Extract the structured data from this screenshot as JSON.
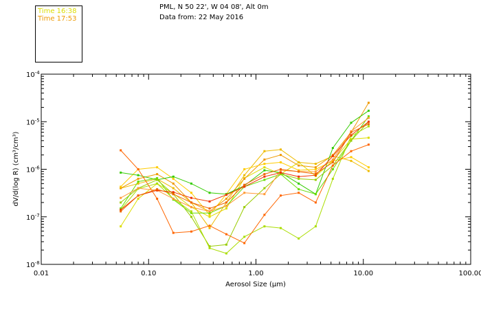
{
  "header": {
    "location": "PML, N 50 22', W 04 08', Alt 0m",
    "data_from": "Data from: 22 May 2016"
  },
  "legend": [
    {
      "label": "Time 16:38",
      "color": "#dddd00"
    },
    {
      "label": "Time 17:53",
      "color": "#ee9900"
    }
  ],
  "chart_data": {
    "type": "line",
    "title": "PML, N 50 22', W 04 08', Alt 0m",
    "xlabel": "Aerosol Size (μm)",
    "ylabel": "dV/d(log R) (cm³/cm³)",
    "xscale": "log",
    "yscale": "log",
    "xlim": [
      0.01,
      100
    ],
    "ylim": [
      1e-08,
      0.0001
    ],
    "x_ticks": [
      {
        "value": 0.01,
        "label": "0.01"
      },
      {
        "value": 0.1,
        "label": "0.10"
      },
      {
        "value": 1,
        "label": "1.00"
      },
      {
        "value": 10,
        "label": "10.00"
      },
      {
        "value": 100,
        "label": "100.00"
      }
    ],
    "y_ticks": [
      {
        "value": 1e-08,
        "base": "10",
        "exp": "-8"
      },
      {
        "value": 1e-07,
        "base": "10",
        "exp": "-7"
      },
      {
        "value": 1e-06,
        "base": "10",
        "exp": "-6"
      },
      {
        "value": 1e-05,
        "base": "10",
        "exp": "-5"
      },
      {
        "value": 0.0001,
        "base": "10",
        "exp": "-4"
      }
    ],
    "x": [
      0.055,
      0.08,
      0.12,
      0.17,
      0.25,
      0.37,
      0.53,
      0.78,
      1.2,
      1.7,
      2.5,
      3.6,
      5.2,
      7.7,
      11.2
    ],
    "series": [
      {
        "name": "s1",
        "color": "#dddd00",
        "values": [
          6.3e-08,
          2.4e-07,
          5e-07,
          3.1e-07,
          1.6e-07,
          1e-07,
          1.5e-07,
          6.5e-07,
          1.1e-06,
          7.9e-07,
          1.4e-06,
          7.2e-07,
          1.5e-06,
          4.3e-06,
          4.6e-06
        ]
      },
      {
        "name": "s2",
        "color": "#eebb00",
        "values": [
          4e-07,
          5e-07,
          6.3e-07,
          4e-07,
          2e-07,
          5.8e-08,
          2e-07,
          7.5e-07,
          2.4e-06,
          2.6e-06,
          1.4e-06,
          1.3e-06,
          1.9e-06,
          1.5e-06,
          9.2e-07
        ]
      },
      {
        "name": "s3",
        "color": "#ee9900",
        "values": [
          4e-07,
          6.3e-07,
          7.9e-07,
          5e-07,
          2e-07,
          1.3e-07,
          2.4e-07,
          6.3e-07,
          1.6e-06,
          2e-06,
          1.2e-06,
          1.1e-06,
          2e-06,
          6e-06,
          2.5e-05
        ]
      },
      {
        "name": "s4",
        "color": "#ffcc00",
        "values": [
          4.3e-07,
          1e-06,
          1.1e-06,
          6.3e-07,
          3.2e-07,
          1.1e-07,
          3e-07,
          1e-06,
          1.3e-06,
          1.4e-06,
          9.5e-07,
          1e-06,
          1.5e-06,
          1.8e-06,
          1.1e-06
        ]
      },
      {
        "name": "s5",
        "color": "#33cc00",
        "values": [
          8.5e-07,
          7.5e-07,
          6e-07,
          7e-07,
          5e-07,
          3.2e-07,
          3e-07,
          4.5e-07,
          9.5e-07,
          8.5e-07,
          5e-07,
          3e-07,
          2.8e-06,
          9.5e-06,
          1.7e-05
        ]
      },
      {
        "name": "s6",
        "color": "#66dd00",
        "values": [
          1.5e-07,
          5.5e-07,
          6.5e-07,
          2.3e-07,
          1.2e-07,
          1.2e-07,
          1.7e-07,
          4.3e-07,
          6e-07,
          7.9e-07,
          3.8e-07,
          3e-07,
          1e-06,
          4e-06,
          1.3e-05
        ]
      },
      {
        "name": "s7",
        "color": "#99cc00",
        "values": [
          2e-07,
          4e-07,
          6e-07,
          3e-07,
          1e-07,
          2.4e-08,
          2.6e-08,
          1.6e-07,
          4e-07,
          7.9e-07,
          6.3e-07,
          6e-07,
          1.2e-06,
          4e-06,
          1e-05
        ]
      },
      {
        "name": "s8",
        "color": "#aadd00",
        "values": [
          1.4e-07,
          3.9e-07,
          5e-07,
          2.4e-07,
          1.3e-07,
          2.2e-08,
          1.7e-08,
          3.8e-08,
          6.3e-08,
          5.8e-08,
          3.5e-08,
          6.3e-08,
          6.3e-07,
          5e-06,
          8e-06
        ]
      },
      {
        "name": "s9",
        "color": "#ff6600",
        "values": [
          2.5e-06,
          1e-06,
          2.4e-07,
          4.6e-08,
          4.9e-08,
          6.5e-08,
          4.3e-08,
          2.8e-08,
          1.1e-07,
          2.8e-07,
          3.2e-07,
          2e-07,
          1.2e-06,
          2.4e-06,
          3.3e-06
        ]
      },
      {
        "name": "s10",
        "color": "#ff9933",
        "values": [
          2.5e-07,
          4e-07,
          3.6e-07,
          2.4e-07,
          1.6e-07,
          1.3e-07,
          1.7e-07,
          3.2e-07,
          3e-07,
          9.5e-07,
          9e-07,
          8.9e-07,
          1.6e-06,
          6.3e-06,
          1.2e-05
        ]
      },
      {
        "name": "s11",
        "color": "#ee3300",
        "values": [
          1.4e-07,
          2.8e-07,
          3.6e-07,
          3.3e-07,
          2.5e-07,
          2.1e-07,
          2.9e-07,
          4.3e-07,
          7e-07,
          8.5e-07,
          7e-07,
          7.5e-07,
          1.9e-06,
          5.2e-06,
          1e-05
        ]
      },
      {
        "name": "s12",
        "color": "#ee6600",
        "values": [
          1.3e-07,
          2.8e-07,
          3.8e-07,
          3e-07,
          2e-07,
          1.5e-07,
          2e-07,
          4.7e-07,
          7.9e-07,
          1e-06,
          8.9e-07,
          8e-07,
          1.4e-06,
          6e-06,
          8.9e-06
        ]
      }
    ]
  }
}
